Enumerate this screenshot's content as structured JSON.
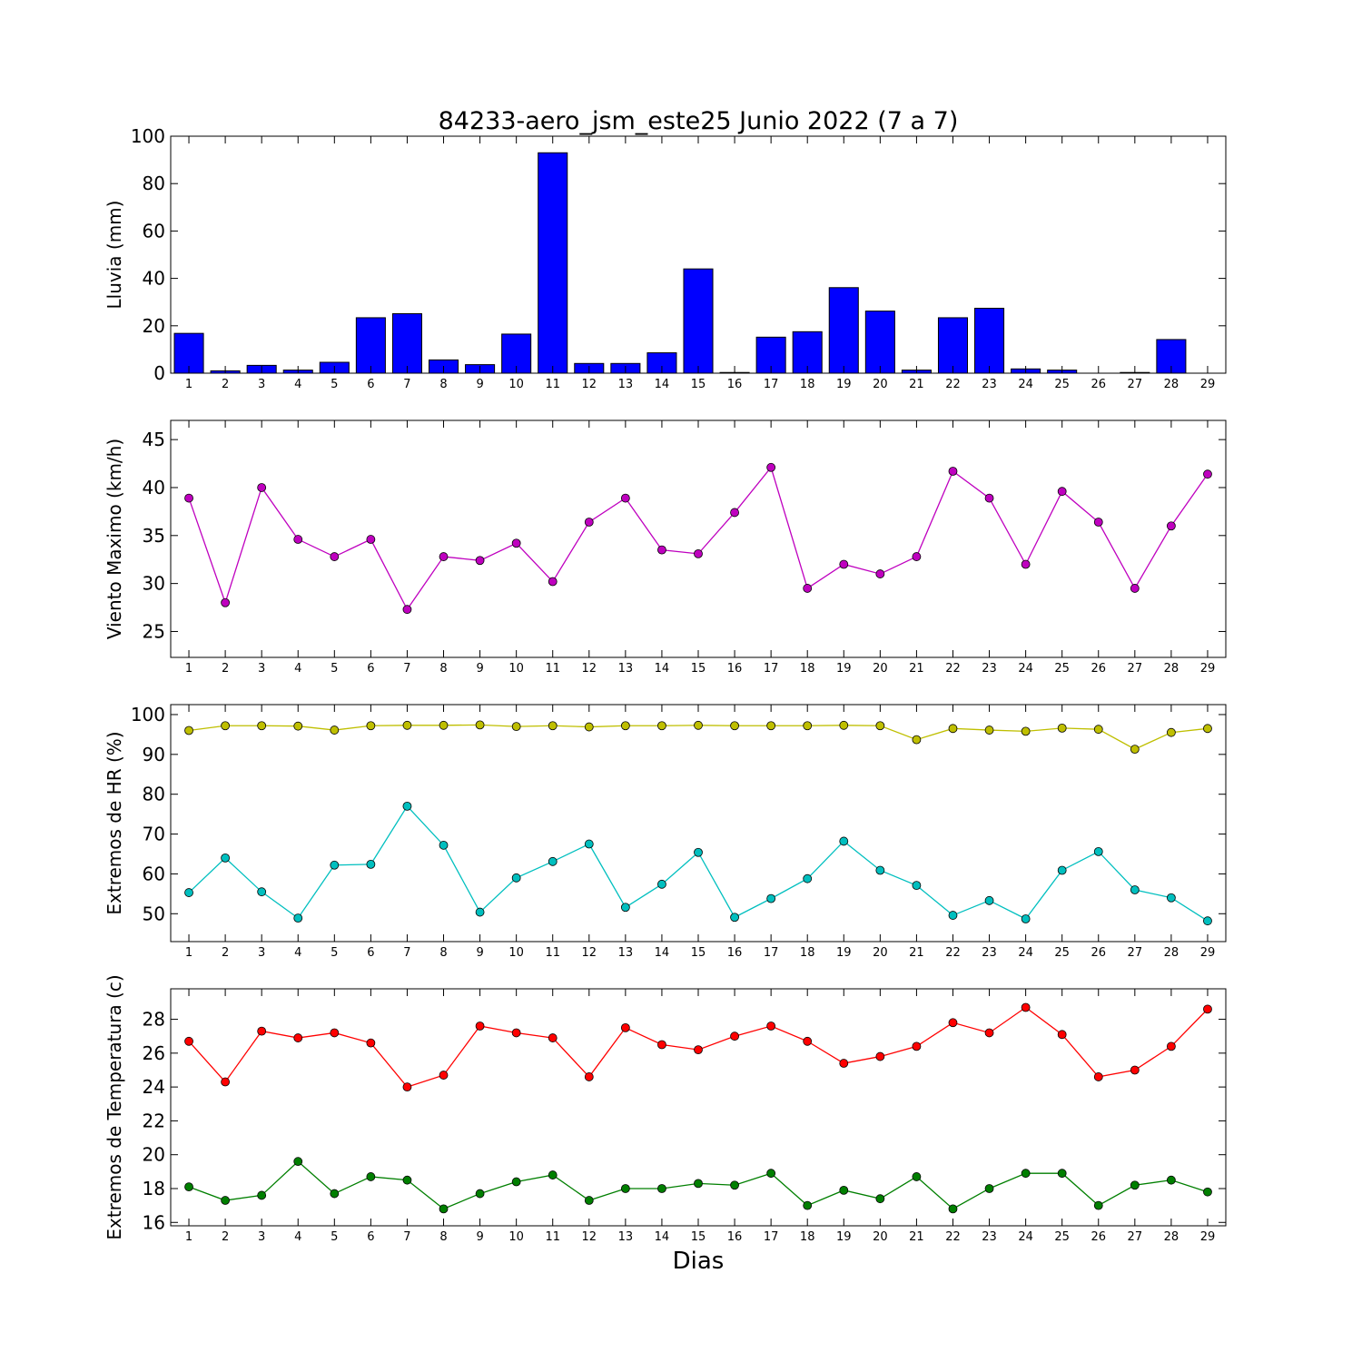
{
  "title": "84233-aero_jsm_este25 Junio 2022  (7 a 7)",
  "xlabel": "Dias",
  "chart_data": [
    {
      "type": "bar",
      "ylabel": "Lluvia (mm)",
      "ylim": [
        0,
        100
      ],
      "yticks": [
        0,
        20,
        40,
        60,
        80,
        100
      ],
      "categories": [
        1,
        2,
        3,
        4,
        5,
        6,
        7,
        8,
        9,
        10,
        11,
        12,
        13,
        14,
        15,
        16,
        17,
        18,
        19,
        20,
        21,
        22,
        23,
        24,
        25,
        26,
        27,
        28,
        29
      ],
      "series": [
        {
          "color": "#0000ff",
          "values": [
            16.8,
            1.0,
            3.3,
            1.3,
            4.6,
            23.4,
            25.1,
            5.6,
            3.6,
            16.5,
            93.0,
            4.1,
            4.1,
            8.6,
            44.0,
            0.3,
            15.2,
            17.5,
            36.1,
            26.2,
            1.3,
            23.4,
            27.4,
            1.8,
            1.3,
            0,
            0.3,
            14.2,
            0
          ]
        }
      ]
    },
    {
      "type": "line",
      "ylabel": "Viento Maximo (km/h)",
      "ylim": [
        22.3,
        47
      ],
      "yticks": [
        25,
        30,
        35,
        40,
        45
      ],
      "x": [
        1,
        2,
        3,
        4,
        5,
        6,
        7,
        8,
        9,
        10,
        11,
        12,
        13,
        14,
        15,
        16,
        17,
        18,
        19,
        20,
        21,
        22,
        23,
        24,
        25,
        26,
        27,
        28,
        29
      ],
      "series": [
        {
          "color": "#bf00bf",
          "values": [
            38.9,
            28.0,
            40.0,
            34.6,
            32.8,
            34.6,
            27.3,
            32.8,
            32.4,
            34.2,
            30.2,
            36.4,
            38.9,
            33.5,
            33.1,
            37.4,
            42.1,
            29.5,
            32.0,
            31.0,
            32.8,
            41.7,
            38.9,
            32.0,
            39.6,
            36.4,
            29.5,
            36.0,
            41.4
          ]
        }
      ]
    },
    {
      "type": "line",
      "ylabel": "Extremos de HR (%)",
      "ylim": [
        43,
        102.5
      ],
      "yticks": [
        50,
        60,
        70,
        80,
        90,
        100
      ],
      "x": [
        1,
        2,
        3,
        4,
        5,
        6,
        7,
        8,
        9,
        10,
        11,
        12,
        13,
        14,
        15,
        16,
        17,
        18,
        19,
        20,
        21,
        22,
        23,
        24,
        25,
        26,
        27,
        28,
        29
      ],
      "series": [
        {
          "color": "#bfbf00",
          "values": [
            96.0,
            97.2,
            97.2,
            97.1,
            96.1,
            97.2,
            97.3,
            97.3,
            97.4,
            97.0,
            97.2,
            96.9,
            97.2,
            97.2,
            97.3,
            97.2,
            97.2,
            97.2,
            97.3,
            97.2,
            93.7,
            96.5,
            96.1,
            95.8,
            96.6,
            96.3,
            91.3,
            95.5,
            96.5
          ]
        },
        {
          "color": "#00bfbf",
          "values": [
            55.3,
            64.0,
            55.5,
            48.9,
            62.2,
            62.4,
            77.0,
            67.2,
            50.4,
            59.0,
            63.1,
            67.5,
            51.6,
            57.4,
            65.4,
            49.1,
            53.8,
            58.8,
            68.2,
            60.9,
            57.1,
            49.6,
            53.3,
            48.7,
            60.9,
            65.6,
            56.0,
            54.0,
            48.2
          ]
        }
      ]
    },
    {
      "type": "line",
      "ylabel": "Extremos de Temperatura (c)",
      "ylim": [
        15.8,
        29.8
      ],
      "yticks": [
        16,
        18,
        20,
        22,
        24,
        26,
        28
      ],
      "x": [
        1,
        2,
        3,
        4,
        5,
        6,
        7,
        8,
        9,
        10,
        11,
        12,
        13,
        14,
        15,
        16,
        17,
        18,
        19,
        20,
        21,
        22,
        23,
        24,
        25,
        26,
        27,
        28,
        29
      ],
      "series": [
        {
          "color": "#ff0000",
          "values": [
            26.7,
            24.3,
            27.3,
            26.9,
            27.2,
            26.6,
            24.0,
            24.7,
            27.6,
            27.2,
            26.9,
            24.6,
            27.5,
            26.5,
            26.2,
            27.0,
            27.6,
            26.7,
            25.4,
            25.8,
            26.4,
            27.8,
            27.2,
            28.7,
            27.1,
            24.6,
            25.0,
            26.4,
            28.6
          ]
        },
        {
          "color": "#007f00",
          "values": [
            18.1,
            17.3,
            17.6,
            19.6,
            17.7,
            18.7,
            18.5,
            16.8,
            17.7,
            18.4,
            18.8,
            17.3,
            18.0,
            18.0,
            18.3,
            18.2,
            18.9,
            17.0,
            17.9,
            17.4,
            18.7,
            16.8,
            18.0,
            18.9,
            18.9,
            17.0,
            18.2,
            18.5,
            17.8
          ]
        }
      ]
    }
  ]
}
